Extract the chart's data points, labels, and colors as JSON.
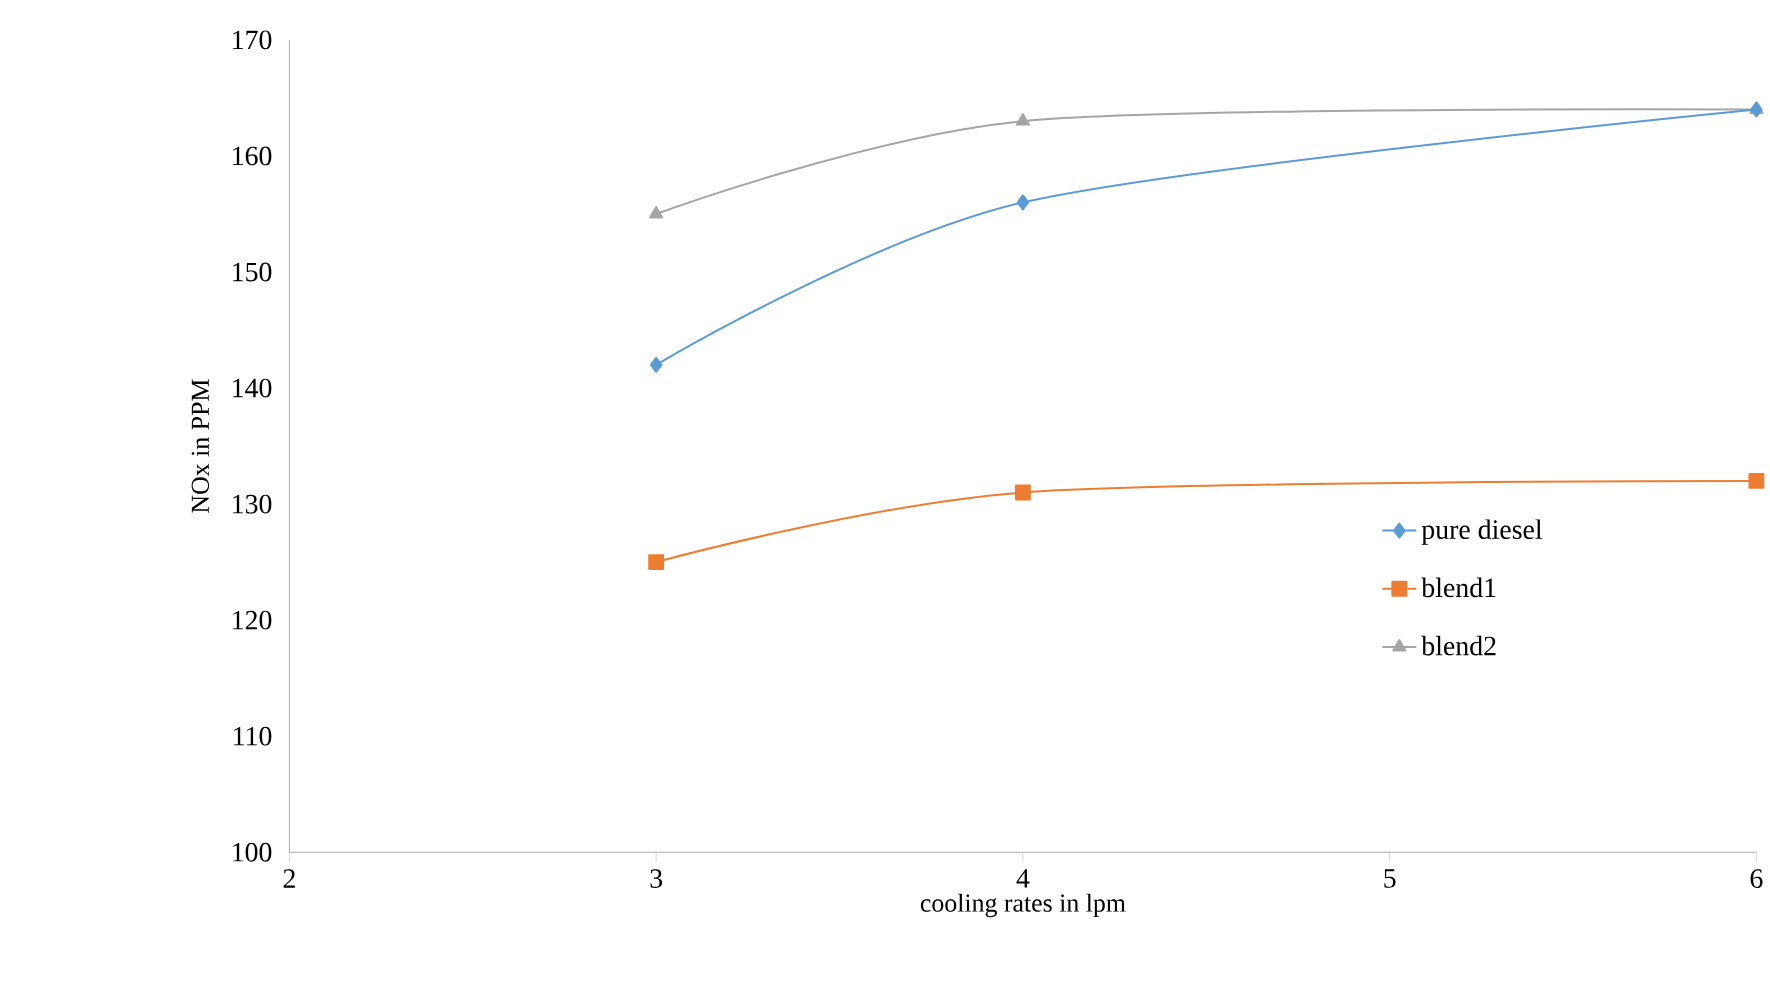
{
  "chart_data": {
    "type": "line",
    "xlabel": "cooling rates in lpm",
    "ylabel": "NOx in PPM",
    "x": [
      3,
      4,
      6
    ],
    "series": [
      {
        "name": "pure diesel",
        "color": "#5b9bd5",
        "marker": "diamond",
        "values": [
          142,
          156,
          164
        ]
      },
      {
        "name": "blend1",
        "color": "#ed7d31",
        "marker": "square",
        "values": [
          125,
          131,
          132
        ]
      },
      {
        "name": "blend2",
        "color": "#a5a5a5",
        "marker": "triangle",
        "values": [
          155,
          163,
          164
        ]
      }
    ],
    "xlim": [
      2,
      6
    ],
    "xticks": [
      2,
      3,
      4,
      5,
      6
    ],
    "ylim": [
      100,
      170
    ],
    "yticks": [
      100,
      110,
      120,
      130,
      140,
      150,
      160,
      170
    ],
    "grid": false,
    "legend": "right",
    "line_style": "solid"
  }
}
